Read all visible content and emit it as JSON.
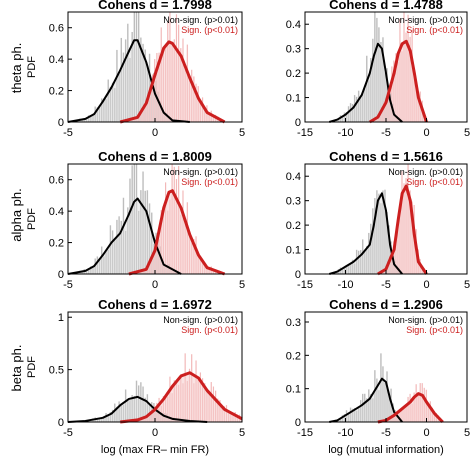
{
  "figure": {
    "row_labels": [
      "theta ph.",
      "alpha ph.",
      "beta ph."
    ],
    "colors": {
      "non_signif": "#000000",
      "signif": "#cc1f1f",
      "hist_grey": "#bdbdbd",
      "hist_red": "#f2b8b8",
      "fill_red": "#f6cccc",
      "fill_grey": "#d9d9d9"
    }
  },
  "chart_data": [
    {
      "type": "area",
      "title": "Cohens d = 1.7998",
      "ylabel": "PDF",
      "xlabel": "",
      "xlim": [
        -5,
        5
      ],
      "ylim": [
        0,
        0.7
      ],
      "xticks": [
        -5,
        0,
        5
      ],
      "yticks": [
        0,
        0.2,
        0.4,
        0.6
      ],
      "legend": [
        "Non-sign. (p>0.01)",
        "Sign. (p<0.01)"
      ],
      "series": [
        {
          "name": "Non-sign. (p>0.01)",
          "x": [
            -5,
            -4,
            -3.5,
            -3,
            -2.5,
            -2,
            -1.5,
            -1.2,
            -1,
            -0.5,
            0,
            0.5,
            1,
            2
          ],
          "y": [
            0,
            0.02,
            0.05,
            0.13,
            0.22,
            0.33,
            0.45,
            0.52,
            0.52,
            0.38,
            0.18,
            0.06,
            0.01,
            0
          ]
        },
        {
          "name": "Sign. (p<0.01)",
          "x": [
            -2,
            -1,
            -0.5,
            0,
            0.5,
            0.8,
            1,
            1.5,
            2,
            2.5,
            3,
            4
          ],
          "y": [
            0,
            0.03,
            0.12,
            0.3,
            0.47,
            0.51,
            0.5,
            0.42,
            0.28,
            0.15,
            0.06,
            0
          ]
        }
      ]
    },
    {
      "type": "area",
      "title": "Cohens d = 1.4788",
      "ylabel": "",
      "xlabel": "",
      "xlim": [
        -15,
        5
      ],
      "ylim": [
        0,
        0.45
      ],
      "xticks": [
        -15,
        -10,
        -5,
        0,
        5
      ],
      "yticks": [
        0,
        0.1,
        0.2,
        0.3,
        0.4
      ],
      "legend": [
        "Non-sign. (p>0.01)",
        "Sign. (p<0.01)"
      ],
      "series": [
        {
          "name": "Non-sign. (p>0.01)",
          "x": [
            -12,
            -11,
            -10,
            -9,
            -8,
            -7,
            -6.5,
            -6,
            -5.5,
            -5,
            -4.5,
            -4,
            -3
          ],
          "y": [
            0,
            0.01,
            0.03,
            0.06,
            0.11,
            0.2,
            0.27,
            0.32,
            0.3,
            0.2,
            0.09,
            0.03,
            0
          ]
        },
        {
          "name": "Sign. (p<0.01)",
          "x": [
            -7,
            -6,
            -5,
            -4,
            -3.5,
            -3,
            -2.5,
            -2,
            -1.5,
            -1,
            0
          ],
          "y": [
            0,
            0.02,
            0.08,
            0.2,
            0.28,
            0.32,
            0.33,
            0.29,
            0.2,
            0.1,
            0
          ]
        }
      ]
    },
    {
      "type": "area",
      "title": "Cohens d = 1.8009",
      "ylabel": "PDF",
      "xlabel": "",
      "xlim": [
        -5,
        5
      ],
      "ylim": [
        0,
        0.7
      ],
      "xticks": [
        -5,
        0,
        5
      ],
      "yticks": [
        0,
        0.2,
        0.4,
        0.6
      ],
      "legend": [
        "Non-sign. (p>0.01)",
        "Sign. (p<0.01)"
      ],
      "series": [
        {
          "name": "Non-sign. (p>0.01)",
          "x": [
            -5,
            -4,
            -3.5,
            -3,
            -2.5,
            -2,
            -1.5,
            -1.2,
            -1,
            -0.5,
            0,
            0.5,
            1.5
          ],
          "y": [
            0,
            0.02,
            0.05,
            0.12,
            0.2,
            0.26,
            0.38,
            0.46,
            0.48,
            0.4,
            0.2,
            0.06,
            0
          ]
        },
        {
          "name": "Sign. (p<0.01)",
          "x": [
            -1.5,
            -0.5,
            0,
            0.5,
            0.8,
            1,
            1.5,
            2,
            2.5,
            3,
            4
          ],
          "y": [
            0,
            0.03,
            0.15,
            0.42,
            0.52,
            0.53,
            0.42,
            0.25,
            0.12,
            0.04,
            0
          ]
        }
      ]
    },
    {
      "type": "area",
      "title": "Cohens d = 1.5616",
      "ylabel": "",
      "xlabel": "",
      "xlim": [
        -15,
        5
      ],
      "ylim": [
        0,
        0.45
      ],
      "xticks": [
        -15,
        -10,
        -5,
        0,
        5
      ],
      "yticks": [
        0,
        0.1,
        0.2,
        0.3,
        0.4
      ],
      "legend": [
        "Non-sign. (p>0.01)",
        "Sign. (p<0.01)"
      ],
      "series": [
        {
          "name": "Non-sign. (p>0.01)",
          "x": [
            -12,
            -11,
            -10,
            -9,
            -8,
            -7,
            -6.5,
            -6,
            -5.5,
            -5,
            -4.5,
            -4,
            -3
          ],
          "y": [
            0,
            0.01,
            0.03,
            0.05,
            0.08,
            0.12,
            0.2,
            0.3,
            0.33,
            0.26,
            0.12,
            0.04,
            0
          ]
        },
        {
          "name": "Sign. (p<0.01)",
          "x": [
            -6,
            -5,
            -4,
            -3.5,
            -3,
            -2.5,
            -2,
            -1.5,
            -1,
            0
          ],
          "y": [
            0,
            0.02,
            0.1,
            0.22,
            0.33,
            0.36,
            0.3,
            0.16,
            0.05,
            0
          ]
        }
      ]
    },
    {
      "type": "area",
      "title": "Cohens d = 1.6972",
      "ylabel": "PDF",
      "xlabel": "log (max FR– min FR)",
      "xlim": [
        -5,
        5
      ],
      "ylim": [
        0,
        1.05
      ],
      "xticks": [
        -5,
        0,
        5
      ],
      "yticks": [
        0,
        0.5,
        1
      ],
      "legend": [
        "Non-sign. (p>0.01)",
        "Sign. (p<0.01)"
      ],
      "series": [
        {
          "name": "Non-sign. (p>0.01)",
          "x": [
            -5,
            -4,
            -3,
            -2.5,
            -2,
            -1.5,
            -1,
            -0.5,
            0,
            0.5,
            1,
            2,
            3
          ],
          "y": [
            0,
            0.01,
            0.04,
            0.08,
            0.16,
            0.22,
            0.24,
            0.2,
            0.12,
            0.06,
            0.03,
            0.01,
            0
          ]
        },
        {
          "name": "Sign. (p<0.01)",
          "x": [
            -2,
            -1,
            -0.5,
            0,
            0.5,
            1,
            1.5,
            2,
            2.5,
            3,
            4,
            5
          ],
          "y": [
            0,
            0.02,
            0.05,
            0.12,
            0.22,
            0.34,
            0.44,
            0.47,
            0.42,
            0.3,
            0.12,
            0.03
          ]
        }
      ]
    },
    {
      "type": "area",
      "title": "Cohens d = 1.2906",
      "ylabel": "",
      "xlabel": "log (mutual information)",
      "xlim": [
        -15,
        5
      ],
      "ylim": [
        0,
        0.33
      ],
      "xticks": [
        -15,
        -10,
        -5,
        0,
        5
      ],
      "yticks": [
        0,
        0.1,
        0.2,
        0.3
      ],
      "legend": [
        "Non-sign. (p>0.01)",
        "Sign. (p<0.01)"
      ],
      "series": [
        {
          "name": "Non-sign. (p>0.01)",
          "x": [
            -12,
            -11,
            -10,
            -9,
            -8,
            -7,
            -6.5,
            -6,
            -5.5,
            -5,
            -4.5,
            -4,
            -3
          ],
          "y": [
            0,
            0.005,
            0.02,
            0.035,
            0.05,
            0.07,
            0.09,
            0.11,
            0.13,
            0.12,
            0.07,
            0.03,
            0
          ]
        },
        {
          "name": "Sign. (p<0.01)",
          "x": [
            -6,
            -5,
            -4,
            -3,
            -2,
            -1.5,
            -1,
            -0.5,
            0,
            1,
            2
          ],
          "y": [
            0,
            0.005,
            0.02,
            0.04,
            0.06,
            0.075,
            0.085,
            0.08,
            0.06,
            0.025,
            0
          ]
        }
      ]
    }
  ]
}
